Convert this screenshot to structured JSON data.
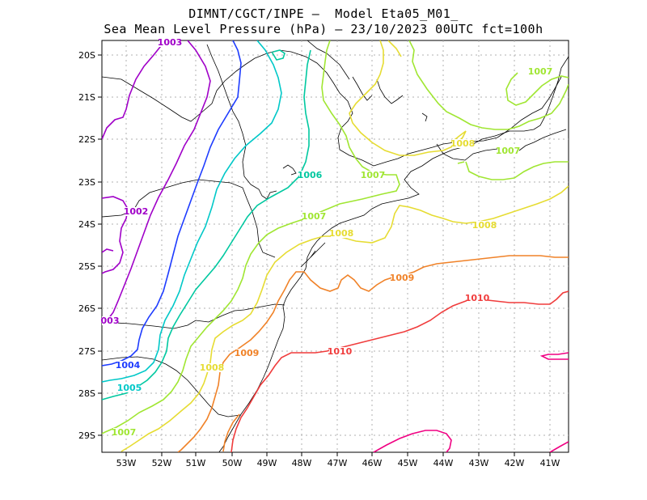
{
  "title_line1": "DIMNT/CGCT/INPE –  Model Eta05_M01_",
  "title_line2": "Sea Mean Level Pressure (hPa) – 23/10/2023 00UTC fct=100h",
  "lon_labels": [
    "53W",
    "52W",
    "51W",
    "50W",
    "49W",
    "48W",
    "47W",
    "46W",
    "45W",
    "44W",
    "43W",
    "42W",
    "41W"
  ],
  "lat_labels": [
    "20S",
    "21S",
    "22S",
    "23S",
    "24S",
    "25S",
    "26S",
    "27S",
    "28S",
    "29S"
  ],
  "colors": {
    "1002": "#a000c8",
    "1003": "#a000c8",
    "1004": "#1e3cff",
    "1005": "#00c8c8",
    "1006": "#00c8a0",
    "1007": "#a0e632",
    "1008": "#e6dc32",
    "1009": "#f08228",
    "1010": "#f03c3c",
    "1011": "#f00082"
  },
  "contour_labels": [
    {
      "text": "1003",
      "level": "1003"
    },
    {
      "text": "1002",
      "level": "1002"
    },
    {
      "text": "003",
      "level": "1003"
    },
    {
      "text": "1004",
      "level": "1004"
    },
    {
      "text": "1005",
      "level": "1005"
    },
    {
      "text": "1006",
      "level": "1006"
    },
    {
      "text": "1007",
      "level": "1007"
    },
    {
      "text": "1007",
      "level": "1007"
    },
    {
      "text": "1007",
      "level": "1007"
    },
    {
      "text": "1007",
      "level": "1007"
    },
    {
      "text": "1007",
      "level": "1007"
    },
    {
      "text": "1008",
      "level": "1008"
    },
    {
      "text": "1008",
      "level": "1008"
    },
    {
      "text": "1008",
      "level": "1008"
    },
    {
      "text": "1008",
      "level": "1008"
    },
    {
      "text": "1009",
      "level": "1009"
    },
    {
      "text": "1009",
      "level": "1009"
    },
    {
      "text": "1010",
      "level": "1010"
    },
    {
      "text": "1010",
      "level": "1010"
    }
  ]
}
